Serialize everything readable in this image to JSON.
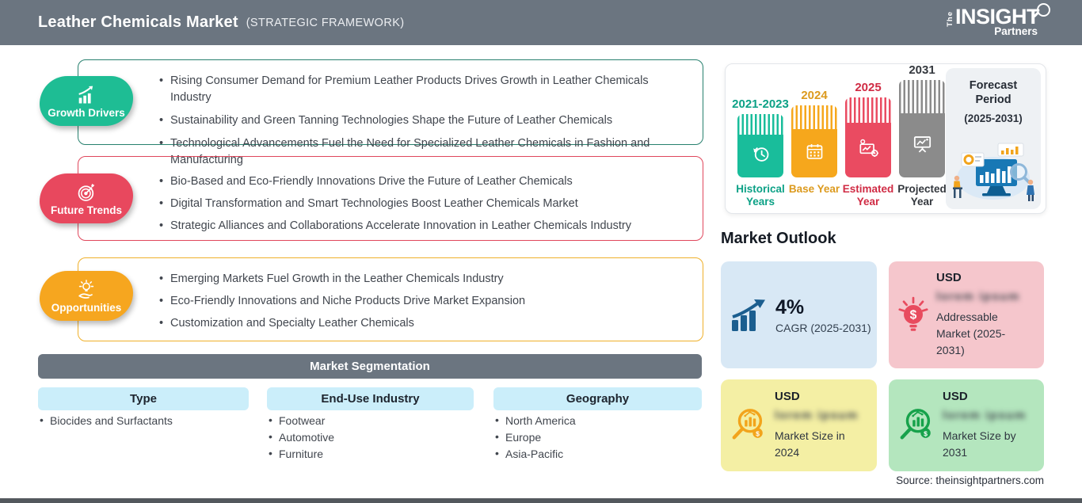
{
  "header": {
    "title": "Leather Chemicals Market",
    "subtitle": "(STRATEGIC FRAMEWORK)",
    "logo": {
      "the": "The",
      "insight": "INSIGHT",
      "partners": "Partners"
    }
  },
  "sections": [
    {
      "label": "Growth Drivers",
      "badge_color": "#1ebd94",
      "border_color": "#27806e",
      "icon": "growth-chart-icon",
      "bullets": [
        "Rising Consumer Demand for Premium Leather Products Drives Growth in Leather Chemicals Industry",
        "Sustainability and Green Tanning Technologies Shape the Future of Leather Chemicals",
        "Technological Advancements Fuel the Need for Specialized Leather Chemicals in Fashion and Manufacturing"
      ]
    },
    {
      "label": "Future Trends",
      "badge_color": "#e8485e",
      "border_color": "#e0475c",
      "icon": "target-icon",
      "bullets": [
        "Bio-Based and Eco-Friendly Innovations Drive the Future of Leather Chemicals",
        "Digital Transformation and Smart Technologies Boost Leather Chemicals Market",
        "Strategic Alliances and Collaborations Accelerate Innovation in Leather Chemicals Industry"
      ]
    },
    {
      "label": "Opportunities",
      "badge_color": "#f6a61f",
      "border_color": "#efb02a",
      "icon": "idea-hand-icon",
      "bullets": [
        "Emerging Markets Fuel Growth in the Leather Chemicals Industry",
        "Eco-Friendly Innovations and Niche Products Drive Market Expansion",
        "Customization and Specialty Leather Chemicals"
      ]
    }
  ],
  "timeline": {
    "bars": [
      {
        "year": "2021-2023",
        "label": "Historical Years",
        "color": "#19bd9b",
        "text_color": "#0ca186",
        "icon": "clock-icon"
      },
      {
        "year": "2024",
        "label": "Base Year",
        "color": "#f6a71c",
        "text_color": "#dc9a1e",
        "icon": "calendar-icon"
      },
      {
        "year": "2025",
        "label": "Estimated Year",
        "color": "#ea4b61",
        "text_color": "#d02b44",
        "icon": "estimate-chart-icon"
      },
      {
        "year": "2031",
        "label": "Projected Year",
        "color": "#8b8b8b",
        "text_color": "#34383e",
        "icon": "projection-screen-icon"
      }
    ],
    "forecast": {
      "title": "Forecast Period",
      "range": "(2025-2031)"
    }
  },
  "market_outlook": {
    "title": "Market Outlook",
    "cards": [
      {
        "value": "4%",
        "label": "CAGR (2025-2031)",
        "bg": "#d8e8f5",
        "icon": "bar-growth-icon",
        "icon_color": "#1b5e8f"
      },
      {
        "currency": "USD",
        "blurred": "lorem ipsum",
        "label": "Addressable Market (2025-2031)",
        "bg": "#f5c6cc",
        "icon": "dollar-bulb-icon",
        "icon_color": "#e84b5e"
      },
      {
        "currency": "USD",
        "blurred": "lorem ipsum",
        "label": "Market Size in 2024",
        "bg": "#f4efa4",
        "icon": "magnifier-chart-icon",
        "icon_color": "#f2a41c"
      },
      {
        "currency": "USD",
        "blurred": "lorem ipsum",
        "label": "Market Size by 2031",
        "bg": "#b4e6be",
        "icon": "magnifier-chart-icon",
        "icon_color": "#17a24b"
      }
    ]
  },
  "segmentation": {
    "title": "Market Segmentation",
    "columns": [
      {
        "header": "Type",
        "items": [
          "Biocides and Surfactants"
        ]
      },
      {
        "header": "End-Use Industry",
        "items": [
          "Footwear",
          "Automotive",
          "Furniture"
        ]
      },
      {
        "header": "Geography",
        "items": [
          "North America",
          "Europe",
          "Asia-Pacific"
        ]
      }
    ]
  },
  "source": "Source: theinsightpartners.com",
  "colors": {
    "header_bg": "#6b7580",
    "segment_bar_bg": "#6b7580",
    "segment_pill_bg": "#cbeefa",
    "forecast_panel_bg": "#eef1f4",
    "bottom_strip": "#53585d"
  }
}
